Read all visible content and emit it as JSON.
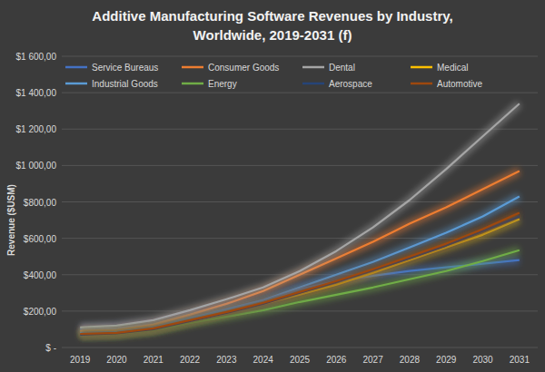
{
  "chart_data": {
    "type": "line",
    "title": "Additive Manufacturing Software Revenues by Industry, Worldwide, 2019-2031 (f)",
    "y_label": "Revenue ($USM)",
    "categories": [
      "2019",
      "2020",
      "2021",
      "2022",
      "2023",
      "2024",
      "2025",
      "2026",
      "2027",
      "2028",
      "2029",
      "2030",
      "2031"
    ],
    "series": [
      {
        "name": "Service Bureaus",
        "color": "#4472c4",
        "values": [
          100,
          105,
          125,
          165,
          200,
          245,
          320,
          365,
          395,
          420,
          440,
          460,
          480
        ]
      },
      {
        "name": "Consumer Goods",
        "color": "#ed7d31",
        "values": [
          90,
          95,
          125,
          180,
          240,
          310,
          400,
          490,
          580,
          680,
          770,
          870,
          970
        ]
      },
      {
        "name": "Dental",
        "color": "#a5a5a5",
        "values": [
          110,
          120,
          150,
          205,
          265,
          330,
          420,
          530,
          660,
          810,
          980,
          1160,
          1340
        ]
      },
      {
        "name": "Medical",
        "color": "#ffc000",
        "values": [
          75,
          80,
          100,
          145,
          190,
          240,
          290,
          345,
          410,
          480,
          550,
          620,
          705
        ]
      },
      {
        "name": "Industrial Goods",
        "color": "#5b9bd5",
        "values": [
          80,
          85,
          110,
          160,
          210,
          260,
          330,
          400,
          470,
          550,
          630,
          720,
          830
        ]
      },
      {
        "name": "Energy",
        "color": "#70ad47",
        "values": [
          70,
          75,
          95,
          135,
          170,
          205,
          250,
          290,
          330,
          375,
          420,
          475,
          535
        ]
      },
      {
        "name": "Aerospace",
        "color": "#264478",
        "values": [
          70,
          78,
          100,
          145,
          190,
          240,
          300,
          360,
          425,
          490,
          560,
          640,
          720
        ]
      },
      {
        "name": "Automotive",
        "color": "#9e480e",
        "values": [
          75,
          80,
          105,
          150,
          195,
          245,
          305,
          365,
          430,
          500,
          570,
          650,
          740
        ]
      }
    ],
    "ylim": [
      0,
      1600
    ],
    "yticks": [
      {
        "value": 0,
        "label": "$ -"
      },
      {
        "value": 200,
        "label": "$200,00"
      },
      {
        "value": 400,
        "label": "$400,00"
      },
      {
        "value": 600,
        "label": "$600,00"
      },
      {
        "value": 800,
        "label": "$800,00"
      },
      {
        "value": 1000,
        "label": "$1 000,00"
      },
      {
        "value": 1200,
        "label": "$1 200,00"
      },
      {
        "value": 1400,
        "label": "$1 400,00"
      },
      {
        "value": 1600,
        "label": "$1 600,00"
      }
    ],
    "grid": true,
    "legend": "top"
  }
}
